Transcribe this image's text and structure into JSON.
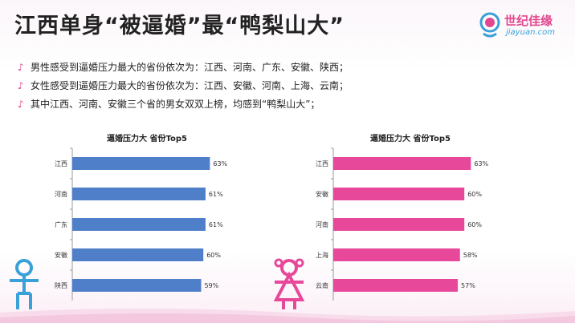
{
  "title": "江西单身“被逼婚”最“鸭梨山大”",
  "logo": {
    "name": "世纪佳缘",
    "sub": "jiayuan.com"
  },
  "bullets": [
    {
      "mark": "♪",
      "text": "男性感受到逼婚压力最大的省份依次为：江西、河南、广东、安徽、陕西；"
    },
    {
      "mark": "♪",
      "text": "女性感受到逼婚压力最大的省份依次为：江西、安徽、河南、上海、云南；"
    },
    {
      "mark": "♪",
      "text": "其中江西、河南、安徽三个省的男女双双上榜，均感到“鸭梨山大”；"
    }
  ],
  "colors": {
    "male": "#4f7fc9",
    "female": "#e8489a",
    "accent": "#e2478f"
  },
  "chart_data": [
    {
      "type": "bar",
      "orientation": "horizontal",
      "title": "逼婚压力大  省份Top5",
      "categories": [
        "江西",
        "河南",
        "广东",
        "安徽",
        "陕西"
      ],
      "values": [
        63,
        61,
        61,
        60,
        59
      ],
      "labels": [
        "63%",
        "61%",
        "61%",
        "60%",
        "59%"
      ],
      "xlim": [
        0,
        100
      ],
      "color": "#4f7fc9"
    },
    {
      "type": "bar",
      "orientation": "horizontal",
      "title": "逼婚压力大  省份Top5",
      "categories": [
        "江西",
        "安徽",
        "河南",
        "上海",
        "云南"
      ],
      "values": [
        63,
        60,
        60,
        58,
        57
      ],
      "labels": [
        "63%",
        "60%",
        "60%",
        "58%",
        "57%"
      ],
      "xlim": [
        0,
        100
      ],
      "color": "#e8489a"
    }
  ]
}
